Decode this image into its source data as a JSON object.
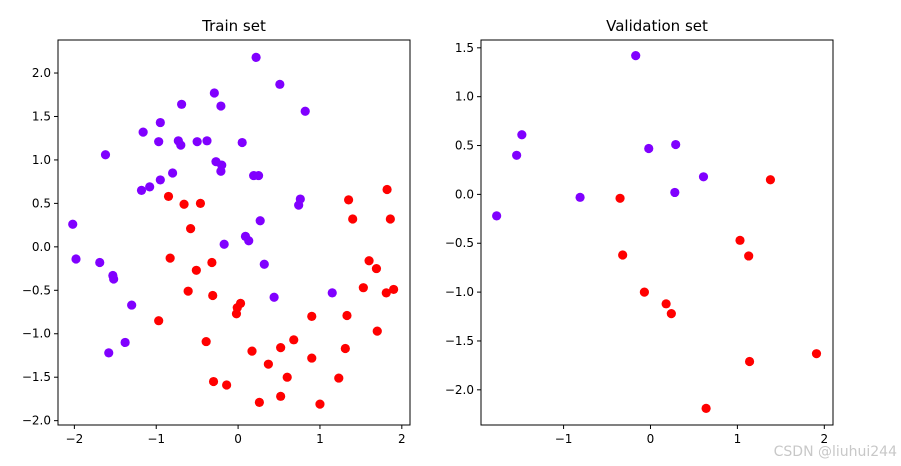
{
  "watermark": "CSDN @liuhui244",
  "chart_data": [
    {
      "type": "scatter",
      "title": "Train set",
      "xlabel": "",
      "ylabel": "",
      "xlim": [
        -2.2,
        2.1
      ],
      "ylim": [
        -2.05,
        2.38
      ],
      "xticks": [
        -2,
        -1,
        0,
        1,
        2
      ],
      "xtick_labels": [
        "−2",
        "−1",
        "0",
        "1",
        "2"
      ],
      "yticks": [
        -2.0,
        -1.5,
        -1.0,
        -0.5,
        0.0,
        0.5,
        1.0,
        1.5,
        2.0
      ],
      "ytick_labels": [
        "−2.0",
        "−1.5",
        "−1.0",
        "−0.5",
        "0.0",
        "0.5",
        "1.0",
        "1.5",
        "2.0"
      ],
      "grid": false,
      "series": [
        {
          "color": "#8000ff",
          "points": [
            [
              0.22,
              2.18
            ],
            [
              0.51,
              1.87
            ],
            [
              -0.29,
              1.77
            ],
            [
              0.82,
              1.56
            ],
            [
              -0.69,
              1.64
            ],
            [
              -0.21,
              1.62
            ],
            [
              -0.95,
              1.43
            ],
            [
              -1.16,
              1.32
            ],
            [
              -0.73,
              1.22
            ],
            [
              -0.7,
              1.17
            ],
            [
              -0.97,
              1.21
            ],
            [
              -0.38,
              1.22
            ],
            [
              -0.5,
              1.21
            ],
            [
              0.05,
              1.2
            ],
            [
              -1.62,
              1.06
            ],
            [
              -0.27,
              0.98
            ],
            [
              -0.2,
              0.94
            ],
            [
              -0.21,
              0.87
            ],
            [
              -0.8,
              0.85
            ],
            [
              -0.95,
              0.77
            ],
            [
              0.19,
              0.82
            ],
            [
              0.25,
              0.82
            ],
            [
              -1.08,
              0.69
            ],
            [
              -1.18,
              0.65
            ],
            [
              0.76,
              0.55
            ],
            [
              0.74,
              0.48
            ],
            [
              0.27,
              0.3
            ],
            [
              0.09,
              0.12
            ],
            [
              0.13,
              0.07
            ],
            [
              -0.17,
              0.03
            ],
            [
              -2.02,
              0.26
            ],
            [
              -1.98,
              -0.14
            ],
            [
              -1.69,
              -0.18
            ],
            [
              0.32,
              -0.2
            ],
            [
              -1.53,
              -0.33
            ],
            [
              -1.52,
              -0.37
            ],
            [
              0.44,
              -0.58
            ],
            [
              1.15,
              -0.53
            ],
            [
              -1.3,
              -0.67
            ],
            [
              -1.38,
              -1.1
            ],
            [
              -1.58,
              -1.22
            ]
          ]
        },
        {
          "color": "#ff0000",
          "points": [
            [
              -0.85,
              0.58
            ],
            [
              -0.66,
              0.49
            ],
            [
              -0.46,
              0.5
            ],
            [
              -0.58,
              0.21
            ],
            [
              1.82,
              0.66
            ],
            [
              1.35,
              0.54
            ],
            [
              1.4,
              0.32
            ],
            [
              1.86,
              0.32
            ],
            [
              -0.83,
              -0.13
            ],
            [
              -0.32,
              -0.18
            ],
            [
              -0.51,
              -0.27
            ],
            [
              1.6,
              -0.16
            ],
            [
              1.69,
              -0.25
            ],
            [
              -0.61,
              -0.51
            ],
            [
              -0.31,
              -0.56
            ],
            [
              1.53,
              -0.47
            ],
            [
              1.81,
              -0.53
            ],
            [
              1.9,
              -0.49
            ],
            [
              0.03,
              -0.65
            ],
            [
              -0.01,
              -0.7
            ],
            [
              -0.02,
              -0.77
            ],
            [
              -0.97,
              -0.85
            ],
            [
              0.9,
              -0.8
            ],
            [
              1.33,
              -0.79
            ],
            [
              1.7,
              -0.97
            ],
            [
              -0.39,
              -1.09
            ],
            [
              0.68,
              -1.07
            ],
            [
              1.31,
              -1.17
            ],
            [
              0.17,
              -1.2
            ],
            [
              0.52,
              -1.16
            ],
            [
              0.9,
              -1.28
            ],
            [
              0.37,
              -1.35
            ],
            [
              -0.3,
              -1.55
            ],
            [
              -0.14,
              -1.59
            ],
            [
              0.6,
              -1.5
            ],
            [
              1.23,
              -1.51
            ],
            [
              0.52,
              -1.72
            ],
            [
              0.26,
              -1.79
            ],
            [
              1.0,
              -1.81
            ]
          ]
        }
      ]
    },
    {
      "type": "scatter",
      "title": "Validation set",
      "xlabel": "",
      "ylabel": "",
      "xlim": [
        -1.95,
        2.1
      ],
      "ylim": [
        -2.36,
        1.58
      ],
      "xticks": [
        -1,
        0,
        1,
        2
      ],
      "xtick_labels": [
        "−1",
        "0",
        "1",
        "2"
      ],
      "yticks": [
        -2.0,
        -1.5,
        -1.0,
        -0.5,
        0.0,
        0.5,
        1.0,
        1.5
      ],
      "ytick_labels": [
        "−2.0",
        "−1.5",
        "−1.0",
        "−0.5",
        "0.0",
        "0.5",
        "1.0",
        "1.5"
      ],
      "grid": false,
      "series": [
        {
          "color": "#8000ff",
          "points": [
            [
              -0.17,
              1.42
            ],
            [
              -1.48,
              0.61
            ],
            [
              -1.54,
              0.4
            ],
            [
              -0.02,
              0.47
            ],
            [
              0.29,
              0.51
            ],
            [
              0.61,
              0.18
            ],
            [
              0.28,
              0.02
            ],
            [
              -0.81,
              -0.03
            ],
            [
              -1.77,
              -0.22
            ]
          ]
        },
        {
          "color": "#ff0000",
          "points": [
            [
              -0.35,
              -0.04
            ],
            [
              -0.32,
              -0.62
            ],
            [
              1.38,
              0.15
            ],
            [
              1.03,
              -0.47
            ],
            [
              1.13,
              -0.63
            ],
            [
              -0.07,
              -1.0
            ],
            [
              0.18,
              -1.12
            ],
            [
              0.24,
              -1.22
            ],
            [
              1.14,
              -1.71
            ],
            [
              1.91,
              -1.63
            ],
            [
              0.64,
              -2.19
            ]
          ]
        }
      ]
    }
  ]
}
